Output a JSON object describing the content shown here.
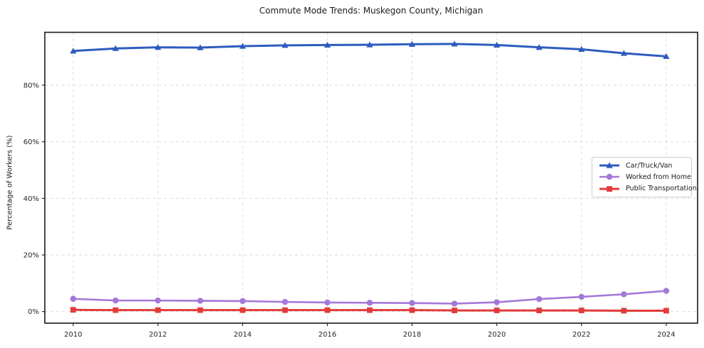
{
  "chart_data": {
    "type": "line",
    "title": "Commute Mode Trends: Muskegon County, Michigan",
    "xlabel": "",
    "ylabel": "Percentage of Workers (%)",
    "x": [
      2010,
      2011,
      2012,
      2013,
      2014,
      2015,
      2016,
      2017,
      2018,
      2019,
      2020,
      2021,
      2022,
      2023,
      2024
    ],
    "series": [
      {
        "name": "Car/Truck/Van",
        "color": "#2d5cbe",
        "marker": "triangle",
        "line_width": 3,
        "values": [
          92.1,
          93.0,
          93.4,
          93.3,
          93.8,
          94.1,
          94.2,
          94.3,
          94.5,
          94.6,
          94.2,
          93.4,
          92.7,
          91.3,
          90.2
        ]
      },
      {
        "name": "Worked from Home",
        "color": "#a378d8",
        "marker": "circle",
        "line_width": 2.6,
        "values": [
          4.5,
          3.9,
          3.9,
          3.8,
          3.7,
          3.4,
          3.2,
          3.1,
          3.0,
          2.8,
          3.3,
          4.4,
          5.2,
          6.1,
          7.3
        ]
      },
      {
        "name": "Public Transportation",
        "color": "#e23b3b",
        "marker": "square",
        "line_width": 3,
        "values": [
          0.6,
          0.5,
          0.5,
          0.5,
          0.5,
          0.5,
          0.5,
          0.5,
          0.5,
          0.4,
          0.4,
          0.4,
          0.4,
          0.3,
          0.3
        ]
      }
    ],
    "xtick_values": [
      2010,
      2012,
      2014,
      2016,
      2018,
      2020,
      2022,
      2024
    ],
    "xtick_labels": [
      "2010",
      "2012",
      "2014",
      "2016",
      "2018",
      "2020",
      "2022",
      "2024"
    ],
    "ytick_values": [
      0,
      20,
      40,
      60,
      80
    ],
    "ytick_labels": [
      "0%",
      "20%",
      "40%",
      "60%",
      "80%"
    ],
    "xlim": [
      2009.33,
      2024.74
    ],
    "ylim": [
      -4.1,
      98.7
    ],
    "grid": true,
    "legend_position": "center right",
    "axis_color": "#1a1a1a",
    "grid_color": "#d9d9d9",
    "tick_label_color": "#262626",
    "background": "#ffffff"
  }
}
